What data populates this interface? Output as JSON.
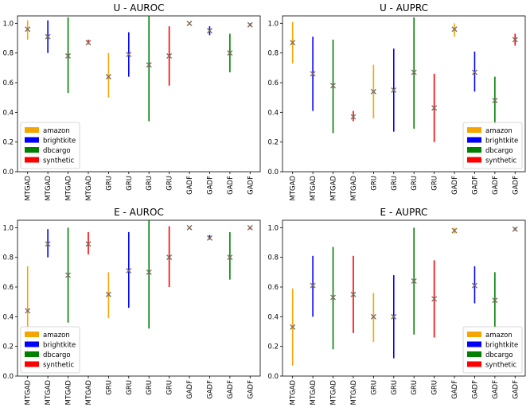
{
  "categories": [
    "MTGAD",
    "MTGAD",
    "MTGAD",
    "MTGAD",
    "GRU",
    "GRU",
    "GRU",
    "GRU",
    "GADF",
    "GADF",
    "GADF",
    "GADF"
  ],
  "series_colors": {
    "amazon": "#f5a500",
    "brightkite": "#0000ff",
    "dbcargo": "#008000",
    "synthetic": "#ff0000"
  },
  "legend": [
    {
      "name": "amazon",
      "color": "#f5a500"
    },
    {
      "name": "brightkite",
      "color": "#0000ff"
    },
    {
      "name": "dbcargo",
      "color": "#008000"
    },
    {
      "name": "synthetic",
      "color": "#ff0000"
    }
  ],
  "chart_data": [
    {
      "type": "errorbar",
      "title": "U - AUROC",
      "ylim": [
        0,
        1.05
      ],
      "yticks": [
        "0.0",
        "0.2",
        "0.4",
        "0.6",
        "0.8",
        "1.0"
      ],
      "legend_position": "bottom-left",
      "points": [
        {
          "x": "MTGAD",
          "dataset": "amazon",
          "mean": 0.96,
          "low": 0.89,
          "high": 1.02
        },
        {
          "x": "MTGAD",
          "dataset": "brightkite",
          "mean": 0.91,
          "low": 0.8,
          "high": 1.02
        },
        {
          "x": "MTGAD",
          "dataset": "dbcargo",
          "mean": 0.78,
          "low": 0.53,
          "high": 1.04
        },
        {
          "x": "MTGAD",
          "dataset": "synthetic",
          "mean": 0.87,
          "low": 0.86,
          "high": 0.89
        },
        {
          "x": "GRU",
          "dataset": "amazon",
          "mean": 0.64,
          "low": 0.5,
          "high": 0.8
        },
        {
          "x": "GRU",
          "dataset": "brightkite",
          "mean": 0.79,
          "low": 0.64,
          "high": 0.94
        },
        {
          "x": "GRU",
          "dataset": "dbcargo",
          "mean": 0.72,
          "low": 0.34,
          "high": 1.05
        },
        {
          "x": "GRU",
          "dataset": "synthetic",
          "mean": 0.78,
          "low": 0.58,
          "high": 0.98
        },
        {
          "x": "GADF",
          "dataset": "amazon",
          "mean": 1.0,
          "low": 0.99,
          "high": 1.0
        },
        {
          "x": "GADF",
          "dataset": "brightkite",
          "mean": 0.95,
          "low": 0.92,
          "high": 0.98
        },
        {
          "x": "GADF",
          "dataset": "dbcargo",
          "mean": 0.8,
          "low": 0.67,
          "high": 0.93
        },
        {
          "x": "GADF",
          "dataset": "synthetic",
          "mean": 0.99,
          "low": 0.98,
          "high": 1.0
        }
      ]
    },
    {
      "type": "errorbar",
      "title": "U - AUPRC",
      "ylim": [
        0,
        1.05
      ],
      "yticks": [
        "0.0",
        "0.2",
        "0.4",
        "0.6",
        "0.8",
        "1.0"
      ],
      "legend_position": "bottom-right",
      "points": [
        {
          "x": "MTGAD",
          "dataset": "amazon",
          "mean": 0.87,
          "low": 0.73,
          "high": 1.01
        },
        {
          "x": "MTGAD",
          "dataset": "brightkite",
          "mean": 0.66,
          "low": 0.41,
          "high": 0.91
        },
        {
          "x": "MTGAD",
          "dataset": "dbcargo",
          "mean": 0.58,
          "low": 0.26,
          "high": 0.89
        },
        {
          "x": "MTGAD",
          "dataset": "synthetic",
          "mean": 0.37,
          "low": 0.34,
          "high": 0.41
        },
        {
          "x": "GRU",
          "dataset": "amazon",
          "mean": 0.54,
          "low": 0.36,
          "high": 0.72
        },
        {
          "x": "GRU",
          "dataset": "brightkite",
          "mean": 0.55,
          "low": 0.27,
          "high": 0.83
        },
        {
          "x": "GRU",
          "dataset": "dbcargo",
          "mean": 0.67,
          "low": 0.29,
          "high": 1.04
        },
        {
          "x": "GRU",
          "dataset": "synthetic",
          "mean": 0.43,
          "low": 0.2,
          "high": 0.66
        },
        {
          "x": "GADF",
          "dataset": "amazon",
          "mean": 0.96,
          "low": 0.91,
          "high": 1.0
        },
        {
          "x": "GADF",
          "dataset": "brightkite",
          "mean": 0.67,
          "low": 0.54,
          "high": 0.81
        },
        {
          "x": "GADF",
          "dataset": "dbcargo",
          "mean": 0.48,
          "low": 0.32,
          "high": 0.64
        },
        {
          "x": "GADF",
          "dataset": "synthetic",
          "mean": 0.89,
          "low": 0.85,
          "high": 0.93
        }
      ]
    },
    {
      "type": "errorbar",
      "title": "E - AUROC",
      "ylim": [
        0,
        1.05
      ],
      "yticks": [
        "0.0",
        "0.2",
        "0.4",
        "0.6",
        "0.8",
        "1.0"
      ],
      "legend_position": "bottom-left",
      "points": [
        {
          "x": "MTGAD",
          "dataset": "amazon",
          "mean": 0.44,
          "low": 0.15,
          "high": 0.74
        },
        {
          "x": "MTGAD",
          "dataset": "brightkite",
          "mean": 0.89,
          "low": 0.8,
          "high": 0.99
        },
        {
          "x": "MTGAD",
          "dataset": "dbcargo",
          "mean": 0.68,
          "low": 0.36,
          "high": 1.0
        },
        {
          "x": "MTGAD",
          "dataset": "synthetic",
          "mean": 0.89,
          "low": 0.82,
          "high": 0.97
        },
        {
          "x": "GRU",
          "dataset": "amazon",
          "mean": 0.55,
          "low": 0.39,
          "high": 0.7
        },
        {
          "x": "GRU",
          "dataset": "brightkite",
          "mean": 0.71,
          "low": 0.46,
          "high": 0.97
        },
        {
          "x": "GRU",
          "dataset": "dbcargo",
          "mean": 0.7,
          "low": 0.32,
          "high": 1.05
        },
        {
          "x": "GRU",
          "dataset": "synthetic",
          "mean": 0.8,
          "low": 0.6,
          "high": 1.01
        },
        {
          "x": "GADF",
          "dataset": "amazon",
          "mean": 1.0,
          "low": 0.99,
          "high": 1.0
        },
        {
          "x": "GADF",
          "dataset": "brightkite",
          "mean": 0.93,
          "low": 0.92,
          "high": 0.95
        },
        {
          "x": "GADF",
          "dataset": "dbcargo",
          "mean": 0.8,
          "low": 0.65,
          "high": 0.97
        },
        {
          "x": "GADF",
          "dataset": "synthetic",
          "mean": 1.0,
          "low": 0.99,
          "high": 1.0
        }
      ]
    },
    {
      "type": "errorbar",
      "title": "E - AUPRC",
      "ylim": [
        0,
        1.05
      ],
      "yticks": [
        "0.0",
        "0.2",
        "0.4",
        "0.6",
        "0.8",
        "1.0"
      ],
      "legend_position": "bottom-right",
      "points": [
        {
          "x": "MTGAD",
          "dataset": "amazon",
          "mean": 0.33,
          "low": 0.07,
          "high": 0.59
        },
        {
          "x": "MTGAD",
          "dataset": "brightkite",
          "mean": 0.61,
          "low": 0.4,
          "high": 0.81
        },
        {
          "x": "MTGAD",
          "dataset": "dbcargo",
          "mean": 0.53,
          "low": 0.18,
          "high": 0.87
        },
        {
          "x": "MTGAD",
          "dataset": "synthetic",
          "mean": 0.55,
          "low": 0.29,
          "high": 0.81
        },
        {
          "x": "GRU",
          "dataset": "amazon",
          "mean": 0.4,
          "low": 0.23,
          "high": 0.56
        },
        {
          "x": "GRU",
          "dataset": "brightkite",
          "mean": 0.4,
          "low": 0.12,
          "high": 0.68
        },
        {
          "x": "GRU",
          "dataset": "dbcargo",
          "mean": 0.64,
          "low": 0.28,
          "high": 1.0
        },
        {
          "x": "GRU",
          "dataset": "synthetic",
          "mean": 0.52,
          "low": 0.26,
          "high": 0.78
        },
        {
          "x": "GADF",
          "dataset": "amazon",
          "mean": 0.98,
          "low": 0.96,
          "high": 1.0
        },
        {
          "x": "GADF",
          "dataset": "brightkite",
          "mean": 0.61,
          "low": 0.49,
          "high": 0.74
        },
        {
          "x": "GADF",
          "dataset": "dbcargo",
          "mean": 0.51,
          "low": 0.32,
          "high": 0.7
        },
        {
          "x": "GADF",
          "dataset": "synthetic",
          "mean": 0.99,
          "low": 0.98,
          "high": 1.0
        }
      ]
    }
  ]
}
